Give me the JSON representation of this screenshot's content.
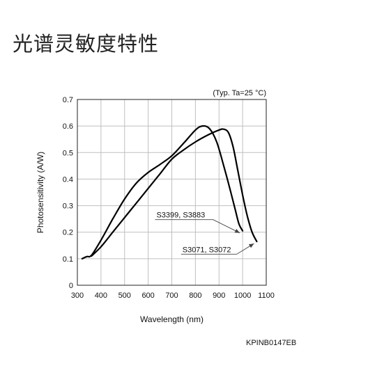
{
  "page": {
    "heading": "光谱灵敏度特性",
    "code": "KPINB0147EB"
  },
  "chart_data": {
    "type": "line",
    "title": "",
    "condition": "(Typ. Ta=25 °C)",
    "xlabel": "Wavelength (nm)",
    "ylabel": "Photosensitivity (A/W)",
    "xlim": [
      300,
      1100
    ],
    "ylim": [
      0,
      0.7
    ],
    "xticks": [
      300,
      400,
      500,
      600,
      700,
      800,
      900,
      1000,
      1100
    ],
    "yticks": [
      0,
      0.1,
      0.2,
      0.3,
      0.4,
      0.5,
      0.6,
      0.7
    ],
    "ytick_labels": [
      "0",
      "0.1",
      "0.2",
      "0.3",
      "0.4",
      "0.5",
      "0.6",
      "0.7"
    ],
    "grid": true,
    "series": [
      {
        "name": "S3399, S3883",
        "x": [
          320,
          340,
          360,
          400,
          450,
          500,
          550,
          600,
          650,
          700,
          750,
          800,
          830,
          860,
          890,
          920,
          950,
          970,
          985,
          1000
        ],
        "y": [
          0.1,
          0.108,
          0.113,
          0.17,
          0.25,
          0.325,
          0.385,
          0.425,
          0.455,
          0.488,
          0.535,
          0.585,
          0.6,
          0.59,
          0.54,
          0.45,
          0.35,
          0.28,
          0.23,
          0.205
        ]
      },
      {
        "name": "S3071, S3072",
        "x": [
          360,
          400,
          450,
          500,
          550,
          600,
          650,
          700,
          750,
          800,
          850,
          900,
          920,
          940,
          960,
          980,
          1000,
          1020,
          1040,
          1060
        ],
        "y": [
          0.11,
          0.145,
          0.2,
          0.255,
          0.31,
          0.365,
          0.42,
          0.475,
          0.51,
          0.54,
          0.565,
          0.585,
          0.588,
          0.575,
          0.52,
          0.43,
          0.34,
          0.26,
          0.2,
          0.165
        ]
      }
    ],
    "annotations": [
      {
        "text": "S3399, S3883",
        "series": 0,
        "point_x": 1000,
        "point_y": 0.205
      },
      {
        "text": "S3071, S3072",
        "series": 1,
        "point_x": 1060,
        "point_y": 0.165
      }
    ]
  }
}
